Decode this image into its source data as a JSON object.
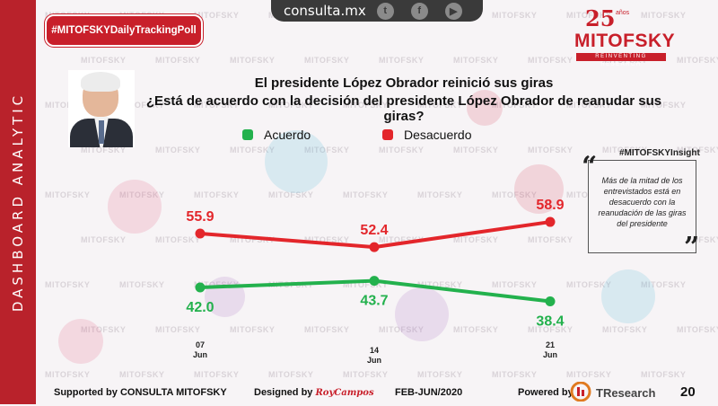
{
  "sidebar": {
    "label": "DASHBOARD ANALYTIC"
  },
  "topbar": {
    "site": "consulta.mx",
    "icons": [
      "twitter-icon",
      "facebook-icon",
      "youtube-icon"
    ]
  },
  "badge": {
    "label": "#MITOFSKYDailyTrackingPoll"
  },
  "logo": {
    "number": "25",
    "anos": "años",
    "name": "MITOFSKY",
    "tagline": "REINVENTING RESEARCH"
  },
  "title": {
    "line1": "El presidente López Obrador reinició sus giras",
    "line2": "¿Está de acuerdo con la decisión del presidente López Obrador de reanudar sus giras?"
  },
  "insight": {
    "tag": "#MITOFSKYInsight",
    "text": "Más de la mitad de los entrevistados está en desacuerdo con la reanudación de las giras del presidente"
  },
  "footer": {
    "supported": "Supported by  CONSULTA  MITOFSKY",
    "designed": "Designed by",
    "designer": "RoyCampos",
    "period": "FEB-JUN/2020",
    "powered": "Powered by",
    "tresearch": "TResearch",
    "page": "20"
  },
  "colors": {
    "red": "#e3262b",
    "green": "#23b14d",
    "brand": "#c81f2a"
  },
  "chart_data": {
    "type": "line",
    "categories": [
      {
        "day": "07",
        "month": "Jun"
      },
      {
        "day": "14",
        "month": "Jun"
      },
      {
        "day": "21",
        "month": "Jun"
      }
    ],
    "series": [
      {
        "name": "Acuerdo",
        "color": "#23b14d",
        "values": [
          42.0,
          43.7,
          38.4
        ],
        "labels": [
          "42.0",
          "43.7",
          "38.4"
        ]
      },
      {
        "name": "Desacuerdo",
        "color": "#e3262b",
        "values": [
          55.9,
          52.4,
          58.9
        ],
        "labels": [
          "55.9",
          "52.4",
          "58.9"
        ]
      }
    ],
    "legend_position": "top",
    "grid": false
  }
}
